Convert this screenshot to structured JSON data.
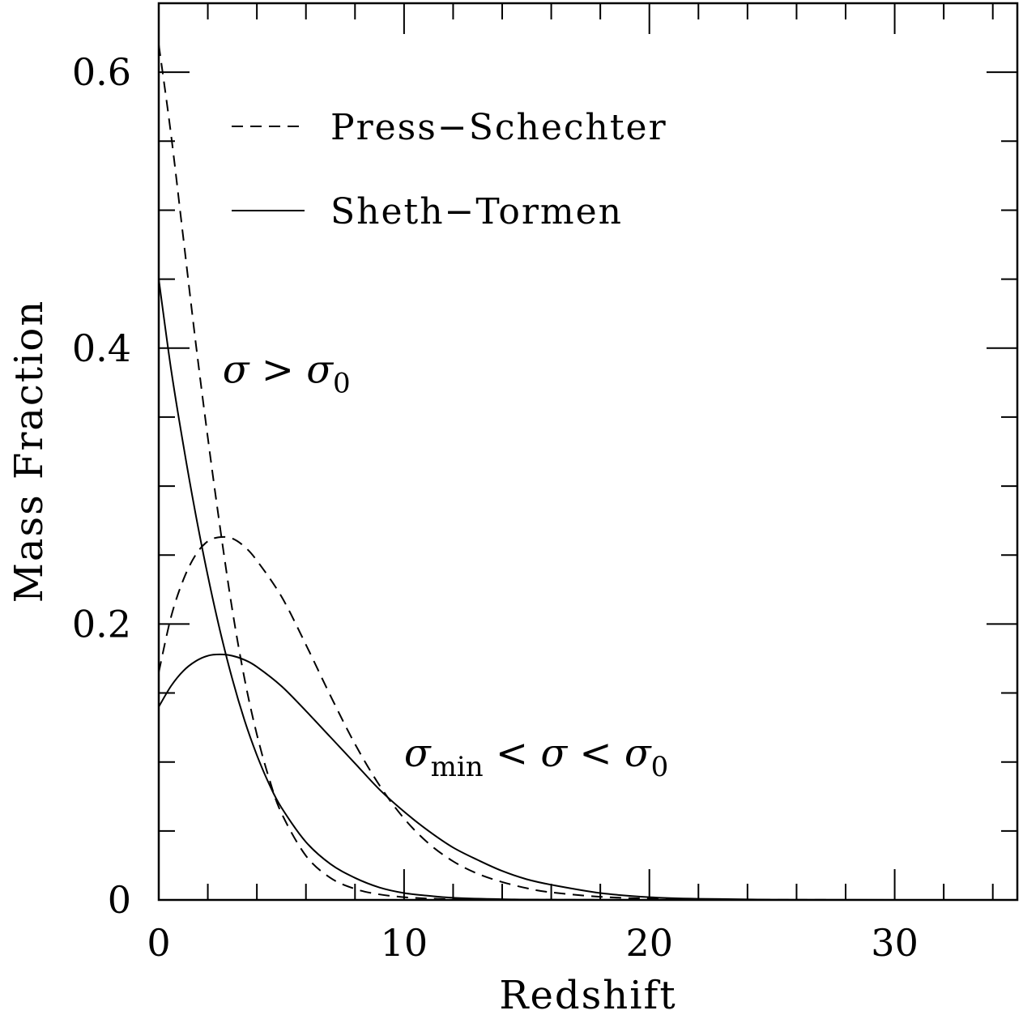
{
  "chart_data": {
    "type": "line",
    "xlabel": "Redshift",
    "ylabel": "Mass Fraction",
    "xlim": [
      0,
      35
    ],
    "ylim": [
      0,
      0.65
    ],
    "x_ticks": [
      0,
      10,
      20,
      30
    ],
    "x_tick_labels": [
      "0",
      "10",
      "20",
      "30"
    ],
    "y_ticks": [
      0,
      0.2,
      0.4,
      0.6
    ],
    "y_tick_labels": [
      "0",
      "0.2",
      "0.4",
      "0.6"
    ],
    "grid": false,
    "legend": {
      "placement": "top-left",
      "entries": [
        {
          "label": "Press−Schechter",
          "style": "dashed"
        },
        {
          "label": "Sheth−Tormen",
          "style": "solid"
        }
      ]
    },
    "annotations": [
      {
        "text": "σ  >  σ",
        "sub": "0",
        "x": 2.6,
        "y": 0.375
      },
      {
        "text": "σ",
        "sub": "min",
        "rest": "  <  σ  <  σ",
        "sub2": "0",
        "x": 10.0,
        "y": 0.097
      }
    ],
    "series": [
      {
        "group": "σ > σ₀",
        "style": "dashed",
        "x": [
          0,
          0.5,
          1,
          1.5,
          2,
          2.5,
          3,
          3.5,
          4,
          4.5,
          5,
          6,
          7,
          8,
          9,
          10,
          11,
          12,
          14,
          16,
          20,
          25,
          35
        ],
        "y": [
          0.62,
          0.555,
          0.48,
          0.405,
          0.335,
          0.27,
          0.21,
          0.16,
          0.12,
          0.088,
          0.063,
          0.032,
          0.016,
          0.008,
          0.004,
          0.002,
          0.001,
          0.0005,
          0.0002,
          0.0001,
          0,
          0,
          0
        ]
      },
      {
        "group": "σ > σ₀",
        "style": "solid",
        "x": [
          0,
          0.5,
          1,
          1.5,
          2,
          2.5,
          3,
          3.5,
          4,
          4.5,
          5,
          6,
          7,
          8,
          9,
          10,
          11,
          12,
          14,
          16,
          20,
          25,
          35
        ],
        "y": [
          0.45,
          0.385,
          0.33,
          0.28,
          0.235,
          0.195,
          0.16,
          0.13,
          0.105,
          0.084,
          0.067,
          0.042,
          0.026,
          0.016,
          0.009,
          0.005,
          0.003,
          0.0015,
          0.0005,
          0.0002,
          0,
          0,
          0
        ]
      },
      {
        "group": "σmin < σ < σ₀",
        "style": "dashed",
        "x": [
          0,
          0.5,
          1,
          1.5,
          2,
          2.5,
          3,
          3.5,
          4,
          5,
          6,
          7,
          8,
          9,
          10,
          11,
          12,
          13,
          14,
          15,
          16,
          18,
          20,
          22,
          25,
          30,
          35
        ],
        "y": [
          0.165,
          0.205,
          0.232,
          0.25,
          0.26,
          0.263,
          0.262,
          0.256,
          0.246,
          0.22,
          0.185,
          0.148,
          0.113,
          0.083,
          0.059,
          0.041,
          0.028,
          0.019,
          0.013,
          0.0085,
          0.0055,
          0.0023,
          0.0009,
          0.0003,
          0.0001,
          0,
          0
        ]
      },
      {
        "group": "σmin < σ < σ₀",
        "style": "solid",
        "x": [
          0,
          0.5,
          1,
          1.5,
          2,
          2.5,
          3,
          3.5,
          4,
          5,
          6,
          7,
          8,
          9,
          10,
          11,
          12,
          13,
          14,
          15,
          16,
          18,
          20,
          22,
          25,
          30,
          35
        ],
        "y": [
          0.14,
          0.155,
          0.166,
          0.173,
          0.177,
          0.178,
          0.177,
          0.174,
          0.169,
          0.155,
          0.137,
          0.118,
          0.099,
          0.08,
          0.064,
          0.05,
          0.038,
          0.029,
          0.021,
          0.015,
          0.011,
          0.005,
          0.002,
          0.0008,
          0.0002,
          0,
          0
        ]
      }
    ]
  }
}
